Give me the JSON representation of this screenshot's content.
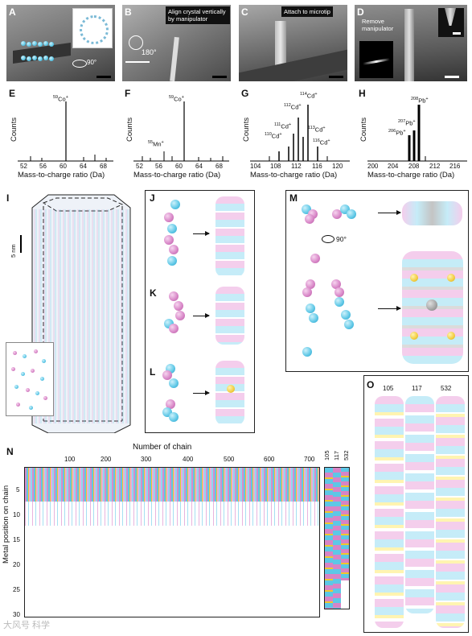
{
  "panels": {
    "A": {
      "letter": "A"
    },
    "B": {
      "letter": "B",
      "caption": "Align crystal vertically by manipulator",
      "angle": "180°"
    },
    "C": {
      "letter": "C",
      "caption": "Attach to microtip"
    },
    "D": {
      "letter": "D",
      "caption": "Remove manipulator"
    },
    "A_rot": "90°",
    "E": {
      "letter": "E",
      "ylabel": "Counts",
      "xlabel": "Mass-to-charge ratio (Da)",
      "ticks": [
        "52",
        "56",
        "60",
        "64",
        "68"
      ],
      "peaks": [
        {
          "iso": "59",
          "el": "Co",
          "ch": "+"
        }
      ]
    },
    "F": {
      "letter": "F",
      "ylabel": "Counts",
      "xlabel": "Mass-to-charge ratio (Da)",
      "ticks": [
        "52",
        "56",
        "60",
        "64",
        "68"
      ],
      "peaks": [
        {
          "iso": "59",
          "el": "Co",
          "ch": "+"
        },
        {
          "iso": "55",
          "el": "Mn",
          "ch": "+"
        }
      ]
    },
    "G": {
      "letter": "G",
      "ylabel": "Counts",
      "xlabel": "Mass-to-charge ratio (Da)",
      "ticks": [
        "104",
        "108",
        "112",
        "116",
        "120"
      ],
      "peaks": [
        {
          "iso": "114",
          "el": "Cd",
          "ch": "+"
        },
        {
          "iso": "112",
          "el": "Cd",
          "ch": "+"
        },
        {
          "iso": "111",
          "el": "Cd",
          "ch": "+"
        },
        {
          "iso": "113",
          "el": "Cd",
          "ch": "+"
        },
        {
          "iso": "110",
          "el": "Cd",
          "ch": "+"
        },
        {
          "iso": "116",
          "el": "Cd",
          "ch": "+"
        }
      ]
    },
    "H": {
      "letter": "H",
      "ylabel": "Counts",
      "xlabel": "Mass-to-charge ratio (Da)",
      "ticks": [
        "200",
        "204",
        "208",
        "212",
        "216"
      ],
      "peaks": [
        {
          "iso": "208",
          "el": "Pb",
          "ch": "+"
        },
        {
          "iso": "207",
          "el": "Pb",
          "ch": "+"
        },
        {
          "iso": "206",
          "el": "Pb",
          "ch": "+"
        }
      ]
    },
    "I": {
      "letter": "I",
      "scale": "5 nm"
    },
    "J": {
      "letter": "J"
    },
    "K": {
      "letter": "K"
    },
    "L": {
      "letter": "L"
    },
    "M": {
      "letter": "M",
      "rot": "90°"
    },
    "N": {
      "letter": "N",
      "top_title": "Number of chain",
      "ylabel": "Metal position on chain",
      "xticks": [
        "100",
        "200",
        "300",
        "400",
        "500",
        "600",
        "700"
      ],
      "yticks": [
        "5",
        "10",
        "15",
        "20",
        "25",
        "30"
      ],
      "chains": [
        "105",
        "117",
        "532"
      ]
    },
    "O": {
      "letter": "O",
      "chains": [
        "105",
        "117",
        "532"
      ]
    }
  },
  "watermark": "大风号 科学"
}
